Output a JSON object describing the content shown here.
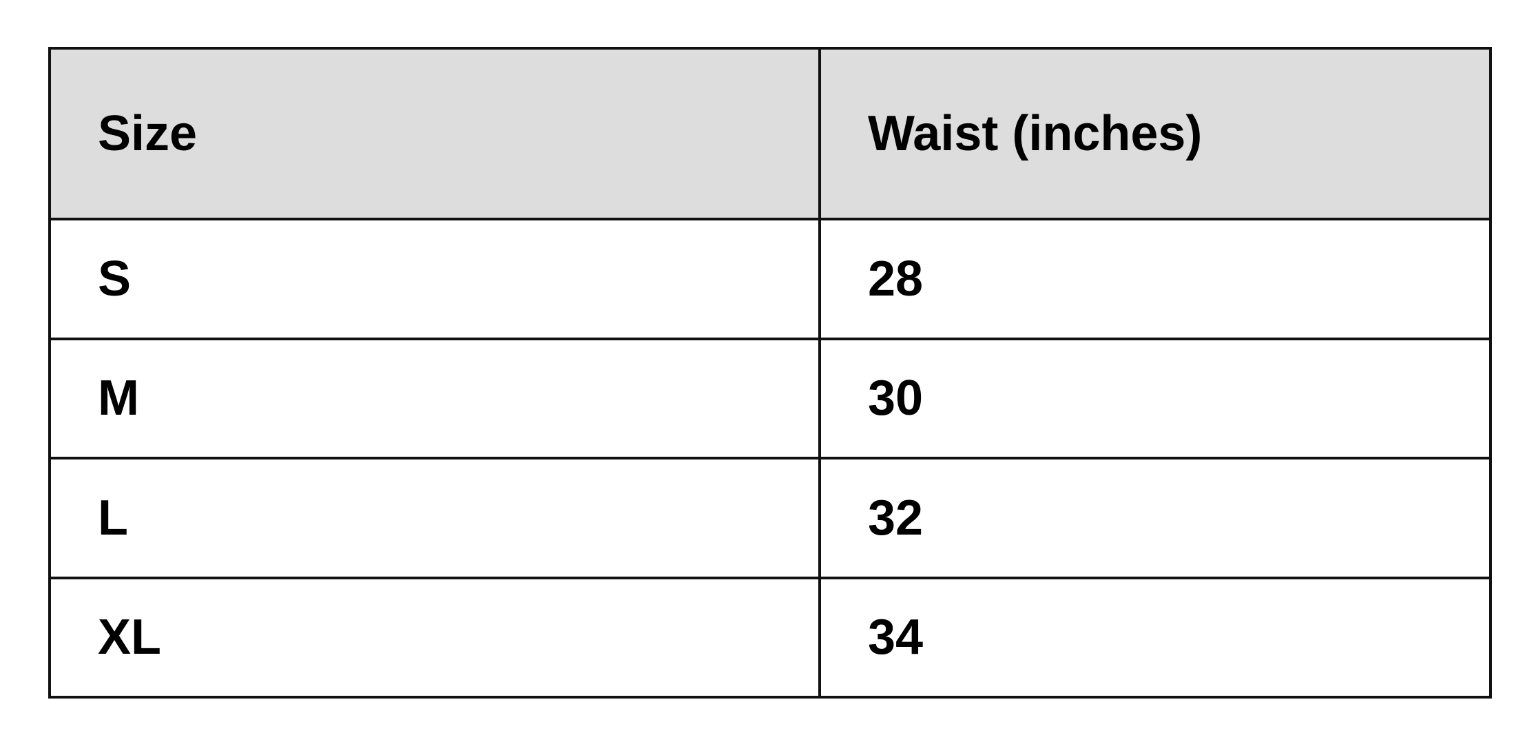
{
  "table": {
    "headers": [
      "Size",
      "Waist (inches)"
    ],
    "rows": [
      [
        "S",
        "28"
      ],
      [
        "M",
        "30"
      ],
      [
        "L",
        "32"
      ],
      [
        "XL",
        "34"
      ]
    ],
    "header_bg": "#dddddd"
  }
}
